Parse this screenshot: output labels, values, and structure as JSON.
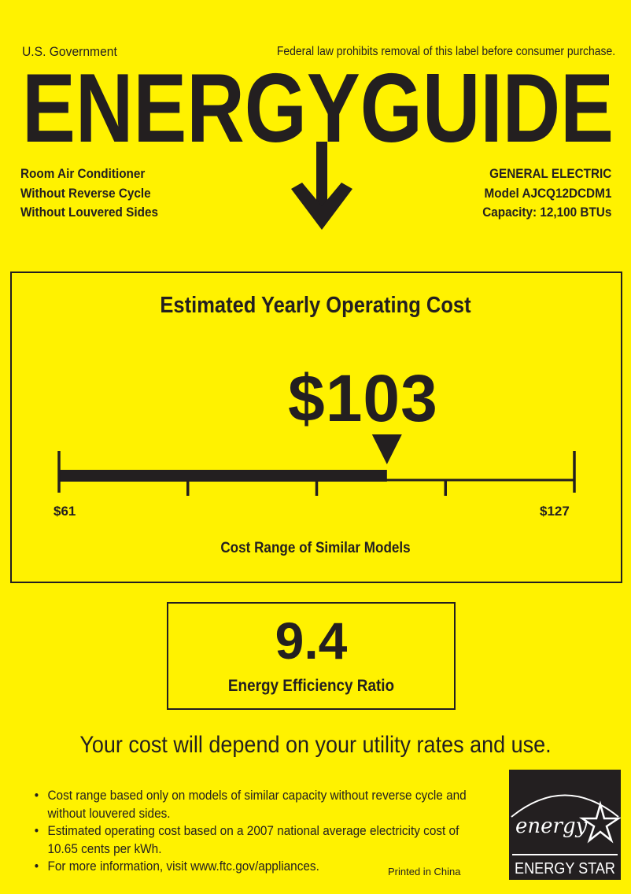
{
  "header": {
    "issuer": "U.S. Government",
    "legal_notice": "Federal law prohibits removal of this label before consumer purchase.",
    "logo_text": "ENERGYGUIDE"
  },
  "product": {
    "lines": [
      "Room Air Conditioner",
      "Without Reverse Cycle",
      "Without Louvered Sides"
    ]
  },
  "manufacturer": {
    "brand": "GENERAL ELECTRIC",
    "model": "Model  AJCQ12DCDM1",
    "capacity": "Capacity: 12,100 BTUs"
  },
  "cost": {
    "title": "Estimated Yearly Operating Cost",
    "value": "$103",
    "amount": 103,
    "range_min": 61,
    "range_max": 127,
    "min_label": "$61",
    "max_label": "$127",
    "range_label": "Cost Range of Similar Models"
  },
  "efficiency": {
    "value": "9.4",
    "label": "Energy Efficiency Ratio"
  },
  "footer": {
    "headline": "Your cost will depend on your utility rates and use.",
    "notes": [
      "Cost range based only on models of similar capacity without reverse cycle and without louvered sides.",
      "Estimated operating cost based on a 2007 national average electricity cost of 10.65 cents per kWh.",
      "For more information, visit www.ftc.gov/appliances."
    ],
    "printed": "Printed in China",
    "energy_star": {
      "script": "energy",
      "label": "ENERGY STAR"
    }
  },
  "colors": {
    "background": "#fff200",
    "ink": "#231f20"
  }
}
